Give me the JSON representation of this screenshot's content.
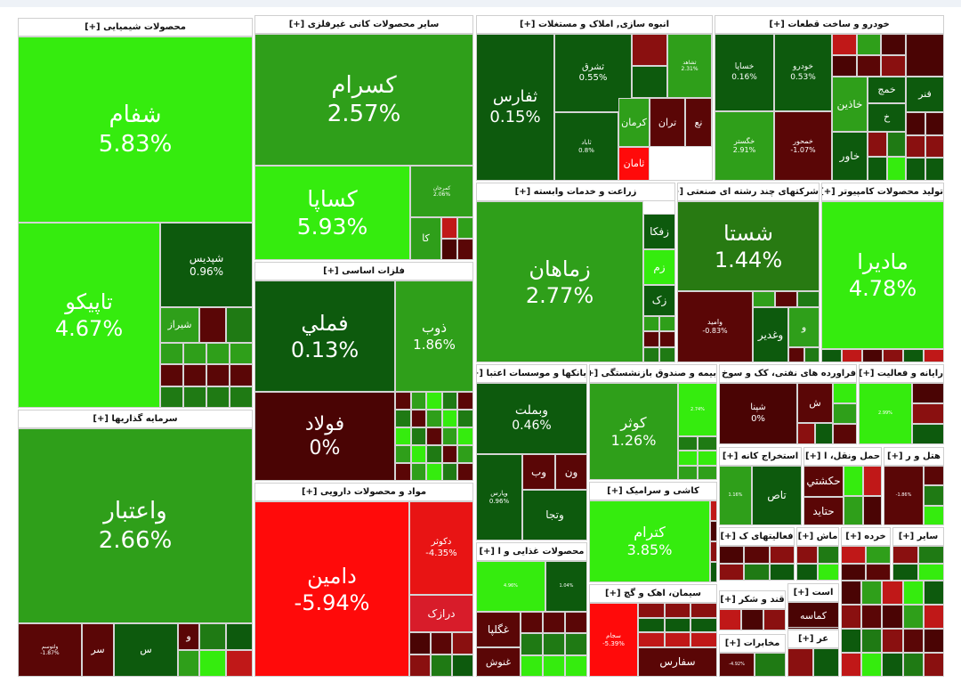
{
  "sectors": [
    {
      "title": "محصولات شیمیایی [+]",
      "tiles": [
        {
          "label": "شفام",
          "change": "5.83%",
          "color": "#35ec0e"
        },
        {
          "label": "تاپیکو",
          "change": "4.67%",
          "color": "#35ec0e"
        },
        {
          "label": "شپدیس",
          "change": "0.96%",
          "color": "#0d5a0d"
        },
        {
          "label": "شیراز",
          "color": "#2f9f1a"
        }
      ]
    },
    {
      "title": "سرمایه گذاریها [+]",
      "tiles": [
        {
          "label": "واعتبار",
          "change": "2.66%",
          "color": "#2f9f1a"
        },
        {
          "label": "ولتوسم",
          "change": "-1.87%",
          "color": "#5a0606"
        },
        {
          "label": "سر",
          "color": "#5a0606"
        },
        {
          "label": "س",
          "color": "#0d5a0d"
        },
        {
          "label": "و",
          "color": "#5a0606"
        }
      ]
    },
    {
      "title": "سایر محصولات کانی غیرفلزی [+]",
      "tiles": [
        {
          "label": "کسرام",
          "change": "2.57%",
          "color": "#2f9f1a"
        },
        {
          "label": "کساپا",
          "change": "5.93%",
          "color": "#35ec0e"
        },
        {
          "label": "کمرجان",
          "change": "2.06%",
          "color": "#2f9f1a"
        },
        {
          "label": "کا",
          "color": "#2f9f1a"
        }
      ]
    },
    {
      "title": "فلزات اساسی [+]",
      "tiles": [
        {
          "label": "فملي",
          "change": "0.13%",
          "color": "#0d5a0d"
        },
        {
          "label": "فولاد",
          "change": "0%",
          "color": "#4a0404"
        },
        {
          "label": "ذوب",
          "change": "1.86%",
          "color": "#2f9f1a"
        }
      ]
    },
    {
      "title": "مواد و محصولات دارویی [+]",
      "tiles": [
        {
          "label": "دامین",
          "change": "-5.94%",
          "color": "#ff0a0a"
        },
        {
          "label": "دکوثر",
          "change": "-4.35%",
          "color": "#e81414"
        },
        {
          "label": "درازک",
          "color": "#d81c2a"
        }
      ]
    },
    {
      "title": "انبوه سازی, املاک و مستغلات [+]",
      "tiles": [
        {
          "label": "ثفارس",
          "change": "0.15%",
          "color": "#0d5a0d"
        },
        {
          "label": "ثشرق",
          "change": "0.55%",
          "color": "#0d5a0d"
        },
        {
          "label": "ثشاهد",
          "change": "2.31%",
          "color": "#2f9f1a"
        },
        {
          "label": "ثاباد",
          "change": "0.8%",
          "color": "#0d5a0d"
        },
        {
          "label": "کرمان",
          "color": "#2f9f1a"
        },
        {
          "label": "تران",
          "color": "#5a0606"
        },
        {
          "label": "نع",
          "color": "#5a0606"
        },
        {
          "label": "ثامان",
          "color": "#ff0a0a"
        }
      ]
    },
    {
      "title": "خودرو و ساخت قطعات [+]",
      "tiles": [
        {
          "label": "خساپا",
          "change": "0.16%",
          "color": "#0d5a0d"
        },
        {
          "label": "خودرو",
          "change": "0.53%",
          "color": "#0d5a0d"
        },
        {
          "label": "خگستر",
          "change": "2.91%",
          "color": "#2f9f1a"
        },
        {
          "label": "خمحور",
          "change": "-1.07%",
          "color": "#5a0606"
        },
        {
          "label": "خاذین",
          "color": "#2f9f1a"
        },
        {
          "label": "خاور",
          "color": "#0d5a0d"
        },
        {
          "label": "خمج",
          "color": "#0d5a0d"
        },
        {
          "label": "خ",
          "color": "#0d5a0d"
        },
        {
          "label": "فنر",
          "color": "#0d5a0d"
        }
      ]
    },
    {
      "title": "زراعت و خدمات وابسته [+]",
      "tiles": [
        {
          "label": "زماهان",
          "change": "2.77%",
          "color": "#2f9f1a"
        },
        {
          "label": "زفکا",
          "color": "#0d5a0d"
        },
        {
          "label": "زم",
          "color": "#35ec0e"
        },
        {
          "label": "زک",
          "color": "#0d5a0d"
        }
      ]
    },
    {
      "title": "شرکتهای چند رشته ای صنعتی [+]",
      "tiles": [
        {
          "label": "شستا",
          "change": "1.44%",
          "color": "#287a12"
        },
        {
          "label": "وامید",
          "change": "-0.83%",
          "color": "#5a0606"
        },
        {
          "label": "وغدیر",
          "color": "#0d5a0d"
        },
        {
          "label": "و",
          "color": "#2f9f1a"
        }
      ]
    },
    {
      "title": "تولید محصولات کامپیوتر [+]",
      "tiles": [
        {
          "label": "ماديرا",
          "change": "4.78%",
          "color": "#35ec0e"
        }
      ]
    },
    {
      "title": "بانکها و موسسات اعتبا [+]",
      "tiles": [
        {
          "label": "وبملت",
          "change": "0.46%",
          "color": "#0d5a0d"
        },
        {
          "label": "وپارس",
          "change": "0.96%",
          "color": "#0d5a0d"
        },
        {
          "label": "وب",
          "color": "#5a0606"
        },
        {
          "label": "ون",
          "color": "#5a0606"
        },
        {
          "label": "وتجا",
          "color": "#0d5a0d"
        }
      ]
    },
    {
      "title": "بیمه و صندوق بازنشستگی [+]",
      "tiles": [
        {
          "label": "کوثر",
          "change": "1.26%",
          "color": "#2f9f1a"
        },
        {
          "change": "2.74%",
          "color": "#35ec0e"
        }
      ]
    },
    {
      "title": "فراورده های نفتی، کک و سوخ [+]",
      "tiles": [
        {
          "label": "شپنا",
          "change": "0%",
          "color": "#4a0404"
        },
        {
          "label": "ش",
          "color": "#5a0606"
        }
      ]
    },
    {
      "title": "رایانه و فعالیت [+]",
      "tiles": [
        {
          "change": "2.99%",
          "color": "#35ec0e"
        }
      ]
    },
    {
      "title": "استخراج کانه [+]",
      "tiles": [
        {
          "change": "1.16%",
          "color": "#2f9f1a"
        },
        {
          "label": "تاص",
          "color": "#0d5a0d"
        }
      ]
    },
    {
      "title": "حمل ونقل، ا [+]",
      "tiles": [
        {
          "label": "حکشتي",
          "color": "#5a0606"
        },
        {
          "label": "حتاید",
          "color": "#5a0606"
        }
      ]
    },
    {
      "title": "هتل و ر [+]",
      "tiles": [
        {
          "change": "-1.86%",
          "color": "#5a0606"
        }
      ]
    },
    {
      "title": "کاشی و سرامیک [+]",
      "tiles": [
        {
          "label": "کترام",
          "change": "3.85%",
          "color": "#35ec0e"
        }
      ]
    },
    {
      "title": "محصولات غذایی و ا [+]",
      "tiles": [
        {
          "change": "4.96%",
          "color": "#35ec0e"
        },
        {
          "change": "1.04%",
          "color": "#0d5a0d"
        },
        {
          "label": "غگلپا",
          "color": "#5a0606"
        },
        {
          "label": "غنوش",
          "color": "#5a0606"
        }
      ]
    },
    {
      "title": "سیمان، اهک و گچ [+]",
      "tiles": [
        {
          "label": "سجام",
          "change": "-5.39%",
          "color": "#ff0a0a"
        },
        {
          "label": "سفارس",
          "color": "#5a0606"
        }
      ]
    },
    {
      "title": "فعالیتهای ک [+]",
      "tiles": []
    },
    {
      "title": "ماش [+]",
      "tiles": []
    },
    {
      "title": "خرده [+]",
      "tiles": []
    },
    {
      "title": "سایر [+]",
      "tiles": []
    },
    {
      "title": "قند و شکر [+]",
      "tiles": []
    },
    {
      "title": "مخابرات [+]",
      "tiles": [
        {
          "change": "-4.92%",
          "color": "#5a0606"
        }
      ]
    },
    {
      "title": "است [+]",
      "tiles": [
        {
          "label": "کماسه",
          "color": "#4a0404"
        }
      ]
    },
    {
      "title": "عر [+]",
      "tiles": []
    }
  ]
}
